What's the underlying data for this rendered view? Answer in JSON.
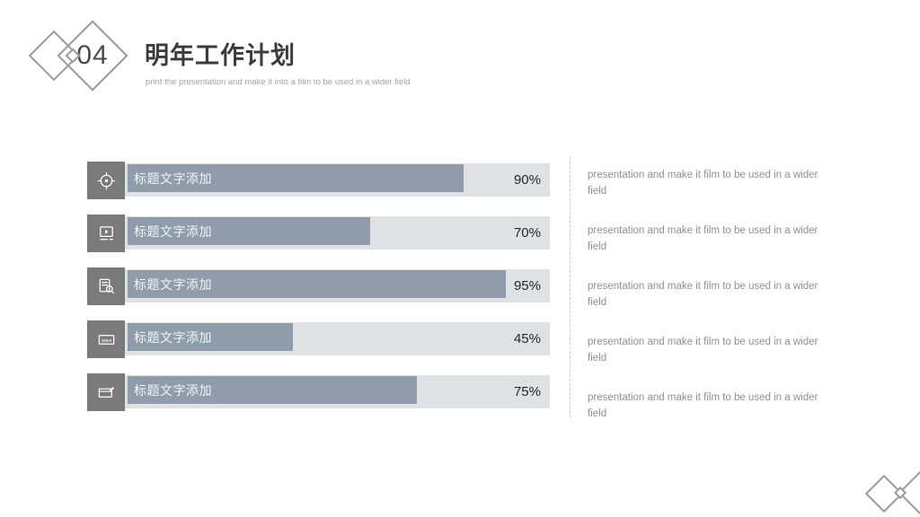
{
  "header": {
    "section_number": "04",
    "title": "明年工作计划",
    "subtitle": "print the presentation and make it into a film to be used in a wider field"
  },
  "chart_data": {
    "type": "bar",
    "orientation": "horizontal",
    "unit": "%",
    "xlim": [
      0,
      100
    ],
    "categories": [
      "标题文字添加",
      "标题文字添加",
      "标题文字添加",
      "标题文字添加",
      "标题文字添加"
    ],
    "values": [
      90,
      70,
      95,
      45,
      75
    ],
    "items": [
      {
        "icon": "target-icon",
        "label": "标题文字添加",
        "value": 90,
        "value_label": "90%",
        "fill_pct": 79
      },
      {
        "icon": "video-player-icon",
        "label": "标题文字添加",
        "value": 70,
        "value_label": "70%",
        "fill_pct": 57
      },
      {
        "icon": "document-search-icon",
        "label": "标题文字添加",
        "value": 95,
        "value_label": "95%",
        "fill_pct": 89
      },
      {
        "icon": "visa-card-icon",
        "label": "标题文字添加",
        "value": 45,
        "value_label": "45%",
        "fill_pct": 39
      },
      {
        "icon": "edit-window-icon",
        "label": "标题文字添加",
        "value": 75,
        "value_label": "75%",
        "fill_pct": 68
      }
    ]
  },
  "notes": [
    "presentation and make it film to be used in a wider field",
    "presentation and make it film to be used in a wider field",
    "presentation and make it film to be used in a wider field",
    "presentation and make it film to be used in a wider field",
    "presentation and make it film to be used in a wider field"
  ],
  "colors": {
    "bar_fill": "#8e9cab",
    "bar_track": "#e0e1e3",
    "icon_tile": "#7a7a7a",
    "diamond_outline": "#9a9a9a",
    "value_text": "#262626",
    "note_text": "#8f8f8f"
  }
}
